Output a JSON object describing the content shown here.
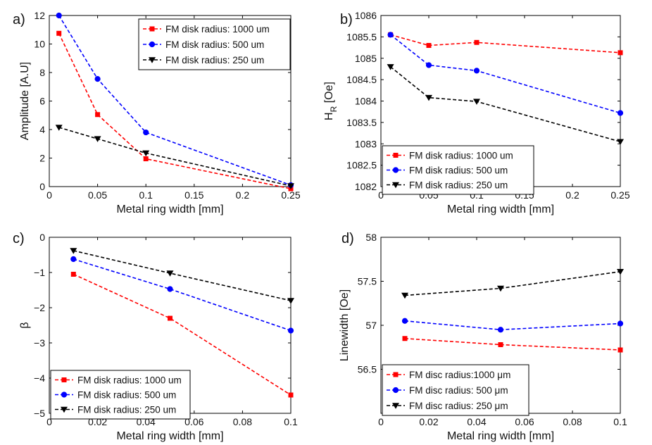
{
  "chart_data": [
    {
      "type": "line",
      "panel_label": "a)",
      "xlabel": "Metal ring width [mm]",
      "ylabel": "Amplitude [A.U]",
      "xlim": [
        0,
        0.25
      ],
      "ylim": [
        0,
        12
      ],
      "xticks": [
        0,
        0.05,
        0.1,
        0.15,
        0.2,
        0.25
      ],
      "xtick_labels": [
        "0",
        "0.05",
        "0.1",
        "0.15",
        "0.2",
        "0.25"
      ],
      "yticks": [
        0,
        2,
        4,
        6,
        8,
        10,
        12
      ],
      "ytick_labels": [
        "0",
        "2",
        "4",
        "6",
        "8",
        "10",
        "12"
      ],
      "legend_position": "top-right",
      "x": [
        0.01,
        0.05,
        0.1,
        0.25
      ],
      "series": [
        {
          "name": "FM disk radius: 1000 um",
          "color": "#ff0000",
          "marker": "square",
          "values": [
            10.75,
            5.05,
            1.95,
            -0.15
          ]
        },
        {
          "name": "FM disk radius: 500 um",
          "color": "#0000ff",
          "marker": "circle",
          "values": [
            12.0,
            7.55,
            3.8,
            0.1
          ]
        },
        {
          "name": "FM disk radius: 250 um",
          "color": "#000000",
          "marker": "triangle-down",
          "values": [
            4.15,
            3.35,
            2.35,
            0.05
          ]
        }
      ]
    },
    {
      "type": "line",
      "panel_label": "b)",
      "xlabel": "Metal ring width [mm]",
      "ylabel": "H",
      "ylabel_sub": "R",
      "ylabel_suffix": " [Oe]",
      "xlim": [
        0,
        0.25
      ],
      "ylim": [
        1082,
        1086
      ],
      "xticks": [
        0,
        0.05,
        0.1,
        0.15,
        0.2,
        0.25
      ],
      "xtick_labels": [
        "0",
        "0.05",
        "0.1",
        "0.15",
        "0.2",
        "0.25"
      ],
      "yticks": [
        1082,
        1082.5,
        1083,
        1083.5,
        1084,
        1084.5,
        1085,
        1085.5,
        1086
      ],
      "ytick_labels": [
        "1082",
        "1082.5",
        "1083",
        "1083.5",
        "1084",
        "1084.5",
        "1085",
        "1085.5",
        "1086"
      ],
      "legend_position": "bottom-left",
      "x": [
        0.01,
        0.05,
        0.1,
        0.25
      ],
      "series": [
        {
          "name": "FM disk radius: 1000 um",
          "color": "#ff0000",
          "marker": "square",
          "values": [
            1085.55,
            1085.3,
            1085.37,
            1085.13
          ]
        },
        {
          "name": "FM disk radius: 500 um",
          "color": "#0000ff",
          "marker": "circle",
          "values": [
            1085.55,
            1084.84,
            1084.71,
            1083.72
          ]
        },
        {
          "name": "FM disk radius: 250 um",
          "color": "#000000",
          "marker": "triangle-down",
          "values": [
            1084.8,
            1084.08,
            1083.99,
            1083.05
          ]
        }
      ]
    },
    {
      "type": "line",
      "panel_label": "c)",
      "xlabel": "Metal ring width [mm]",
      "ylabel": "β",
      "xlim": [
        0,
        0.1
      ],
      "ylim": [
        -5,
        0
      ],
      "xticks": [
        0,
        0.02,
        0.04,
        0.06,
        0.08,
        0.1
      ],
      "xtick_labels": [
        "0",
        "0.02",
        "0.04",
        "0.06",
        "0.08",
        "0.1"
      ],
      "yticks": [
        -5,
        -4,
        -3,
        -2,
        -1,
        0
      ],
      "ytick_labels": [
        "−5",
        "−4",
        "−3",
        "−2",
        "−1",
        "0"
      ],
      "legend_position": "bottom-left",
      "x": [
        0.01,
        0.05,
        0.1
      ],
      "series": [
        {
          "name": "FM disk radius: 1000 um",
          "color": "#ff0000",
          "marker": "square",
          "values": [
            -1.05,
            -2.3,
            -4.48
          ]
        },
        {
          "name": "FM disk radius: 500 um",
          "color": "#0000ff",
          "marker": "circle",
          "values": [
            -0.62,
            -1.47,
            -2.65
          ]
        },
        {
          "name": "FM disk radius: 250 um",
          "color": "#000000",
          "marker": "triangle-down",
          "values": [
            -0.38,
            -1.02,
            -1.8
          ]
        }
      ]
    },
    {
      "type": "line",
      "panel_label": "d)",
      "xlabel": "Metal ring width [mm]",
      "ylabel": "Linewidth [Oe]",
      "xlim": [
        0,
        0.1
      ],
      "ylim": [
        56,
        58
      ],
      "xticks": [
        0,
        0.02,
        0.04,
        0.06,
        0.08,
        0.1
      ],
      "xtick_labels": [
        "0",
        "0.02",
        "0.04",
        "0.06",
        "0.08",
        "0.1"
      ],
      "yticks": [
        56.5,
        57,
        57.5,
        58
      ],
      "ytick_labels": [
        "56.5",
        "57",
        "57.5",
        "58"
      ],
      "legend_position": "bottom-left",
      "x": [
        0.01,
        0.05,
        0.1
      ],
      "series": [
        {
          "name": "FM disc radius:1000 μm",
          "color": "#ff0000",
          "marker": "square",
          "values": [
            56.85,
            56.78,
            56.72
          ]
        },
        {
          "name": "FM disc radius:  500 μm",
          "color": "#0000ff",
          "marker": "circle",
          "values": [
            57.05,
            56.95,
            57.02
          ]
        },
        {
          "name": "FM disc radius:  250 μm",
          "color": "#000000",
          "marker": "triangle-down",
          "values": [
            57.34,
            57.42,
            57.61
          ]
        }
      ]
    }
  ]
}
